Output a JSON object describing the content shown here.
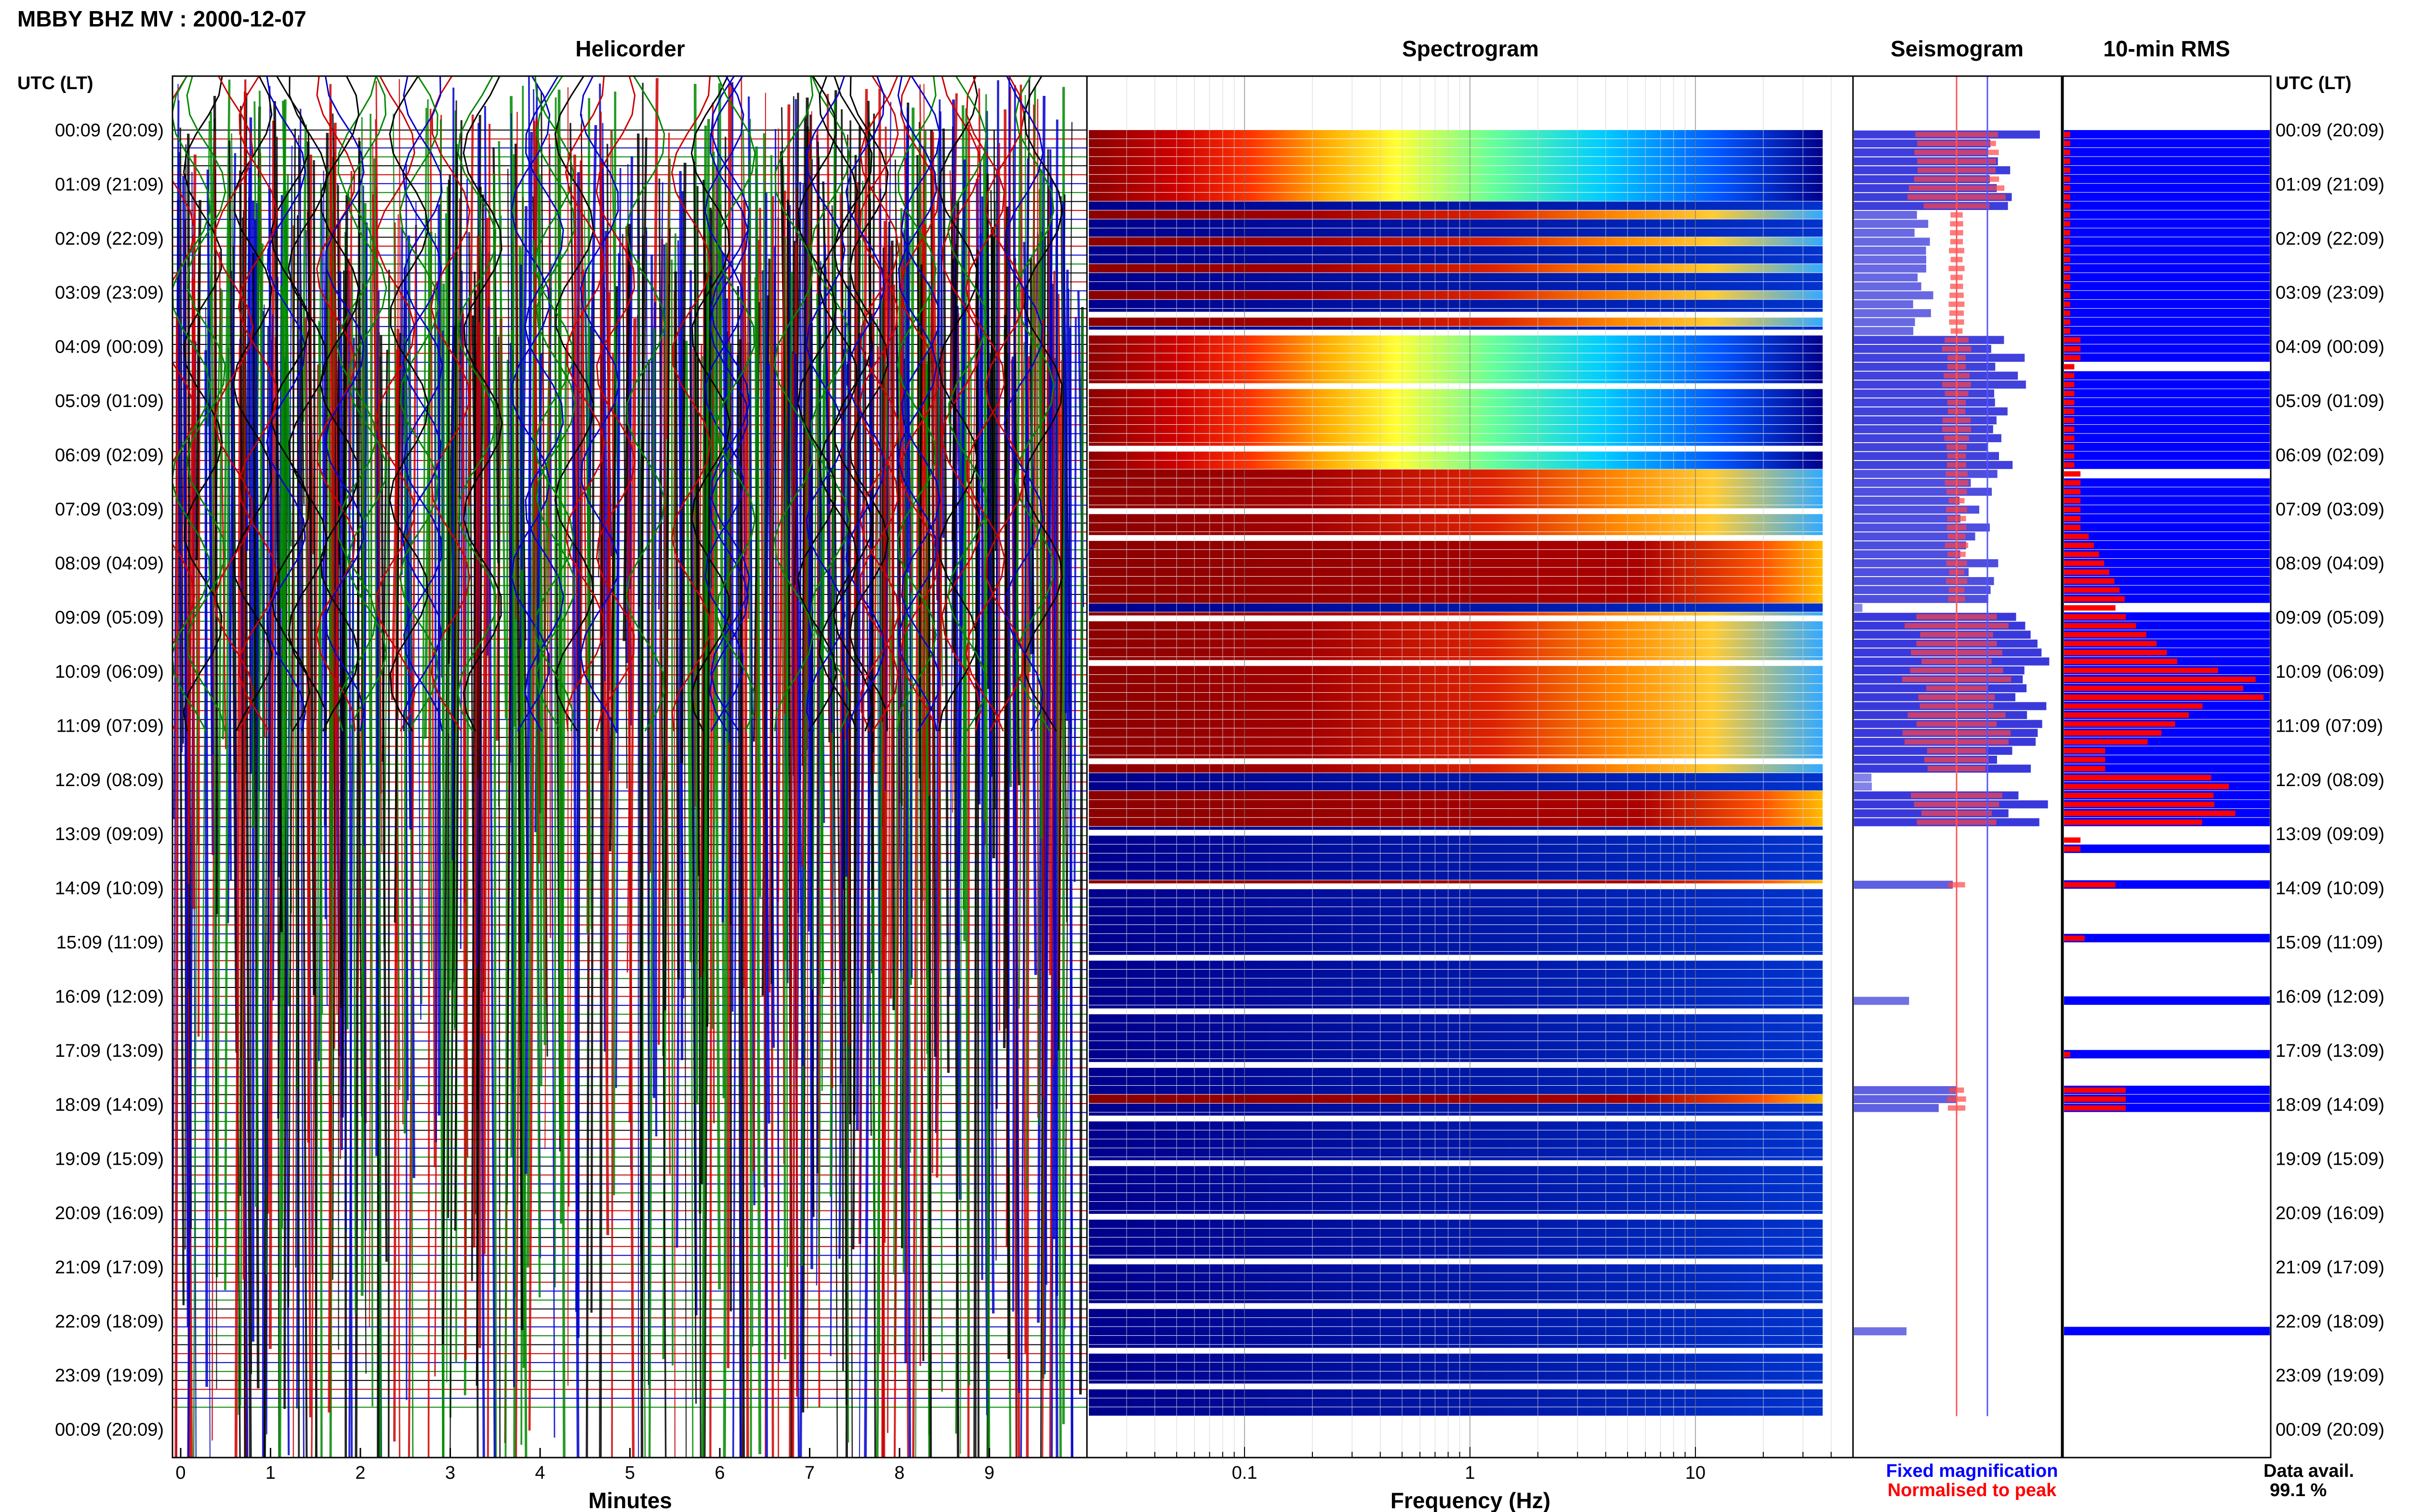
{
  "header": {
    "title": "MBBY BHZ MV : 2000-12-07"
  },
  "panels": {
    "helicorder": "Helicorder",
    "spectrogram": "Spectrogram",
    "seismogram": "Seismogram",
    "rms": "10-min RMS"
  },
  "axis": {
    "left_header": "UTC (LT)",
    "right_header": "UTC (LT)",
    "minutes_label": "Minutes",
    "frequency_label": "Frequency (Hz)"
  },
  "legend": {
    "fixed": "Fixed magnification",
    "normalised": "Normalised to peak",
    "data_avail_label": "Data avail.",
    "data_avail_value": "99.1 %"
  },
  "colors": {
    "helicorder_traces": [
      "#000000",
      "#cc0000",
      "#0000cc",
      "#008800"
    ],
    "spectrogram_background": "#00008b",
    "rms_fixed": "#0000ff",
    "rms_normalised": "#ff0000",
    "legend_fixed": "#0000ff",
    "legend_normalised": "#ff0000"
  },
  "chart_data": [
    {
      "type": "line",
      "name": "helicorder",
      "title": "Helicorder",
      "xlabel": "Minutes",
      "x_ticks": [
        0,
        1,
        2,
        3,
        4,
        5,
        6,
        7,
        8,
        9
      ],
      "xlim": [
        0,
        10
      ]
    },
    {
      "type": "heatmap",
      "name": "spectrogram",
      "title": "Spectrogram",
      "xlabel": "Frequency (Hz)",
      "x_scale": "log",
      "x_ticks": [
        "0.1",
        "1",
        "10"
      ],
      "xlim": [
        0.02,
        50
      ]
    },
    {
      "type": "line",
      "name": "seismogram",
      "title": "Seismogram"
    },
    {
      "type": "bar",
      "name": "rms",
      "title": "10-min RMS",
      "orientation": "horizontal",
      "series": [
        {
          "name": "Fixed magnification"
        },
        {
          "name": "Normalised to peak"
        }
      ]
    }
  ],
  "time_labels": [
    "00:09 (20:09)",
    "01:09 (21:09)",
    "02:09 (22:09)",
    "03:09 (23:09)",
    "04:09 (00:09)",
    "05:09 (01:09)",
    "06:09 (02:09)",
    "07:09 (03:09)",
    "08:09 (04:09)",
    "09:09 (05:09)",
    "10:09 (06:09)",
    "11:09 (07:09)",
    "12:09 (08:09)",
    "13:09 (09:09)",
    "14:09 (10:09)",
    "15:09 (11:09)",
    "16:09 (12:09)",
    "17:09 (13:09)",
    "18:09 (14:09)",
    "19:09 (15:09)",
    "20:09 (16:09)",
    "21:09 (17:09)",
    "22:09 (18:09)",
    "23:09 (19:09)",
    "00:09 (20:09)"
  ]
}
